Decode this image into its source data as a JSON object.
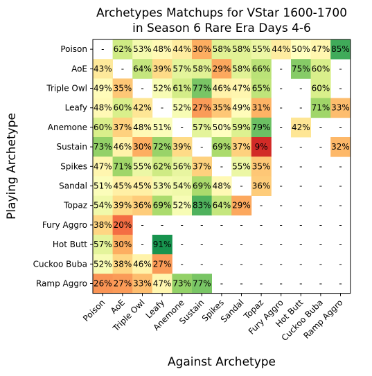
{
  "chart_data": {
    "type": "heatmap",
    "title": [
      "Archetypes Matchups for VStar 1600-1700",
      "in Season 6 Rare Era Days 4-6"
    ],
    "xlabel": "Against Archetype",
    "ylabel": "Playing Archetype",
    "rows": [
      "Poison",
      "AoE",
      "Triple Owl",
      "Leafy",
      "Anemone",
      "Sustain",
      "Spikes",
      "Sandal",
      "Topaz",
      "Fury Aggro",
      "Hot Butt",
      "Cuckoo Buba",
      "Ramp Aggro"
    ],
    "columns": [
      "Poison",
      "AoE",
      "Triple Owl",
      "Leafy",
      "Anemone",
      "Sustain",
      "Spikes",
      "Sandal",
      "Topaz",
      "Fury Aggro",
      "Hot Butt",
      "Cuckoo Buba",
      "Ramp Aggro"
    ],
    "missing_label": "-",
    "colormap": "RdYlGn",
    "color_range": [
      0,
      100
    ],
    "values": [
      [
        null,
        62,
        53,
        48,
        44,
        30,
        58,
        58,
        55,
        44,
        50,
        47,
        85
      ],
      [
        43,
        null,
        64,
        39,
        57,
        58,
        29,
        58,
        66,
        null,
        75,
        60,
        null
      ],
      [
        49,
        35,
        null,
        52,
        61,
        77,
        46,
        47,
        65,
        null,
        null,
        60,
        null
      ],
      [
        48,
        60,
        42,
        null,
        52,
        27,
        35,
        49,
        31,
        null,
        null,
        71,
        33
      ],
      [
        60,
        37,
        48,
        51,
        null,
        57,
        50,
        59,
        79,
        null,
        42,
        null,
        null
      ],
      [
        73,
        46,
        30,
        72,
        39,
        null,
        69,
        37,
        9,
        null,
        null,
        null,
        32
      ],
      [
        47,
        71,
        55,
        62,
        56,
        37,
        null,
        55,
        35,
        null,
        null,
        null,
        null
      ],
      [
        51,
        45,
        45,
        53,
        54,
        69,
        48,
        null,
        36,
        null,
        null,
        null,
        null
      ],
      [
        54,
        39,
        36,
        69,
        52,
        83,
        64,
        29,
        null,
        null,
        null,
        null,
        null
      ],
      [
        38,
        20,
        null,
        null,
        null,
        null,
        null,
        null,
        null,
        null,
        null,
        null,
        null
      ],
      [
        57,
        30,
        null,
        91,
        null,
        null,
        null,
        null,
        null,
        null,
        null,
        null,
        null
      ],
      [
        52,
        38,
        46,
        27,
        null,
        null,
        null,
        null,
        null,
        null,
        null,
        null,
        null
      ],
      [
        26,
        27,
        33,
        47,
        73,
        77,
        null,
        null,
        null,
        null,
        null,
        null,
        null
      ]
    ]
  }
}
